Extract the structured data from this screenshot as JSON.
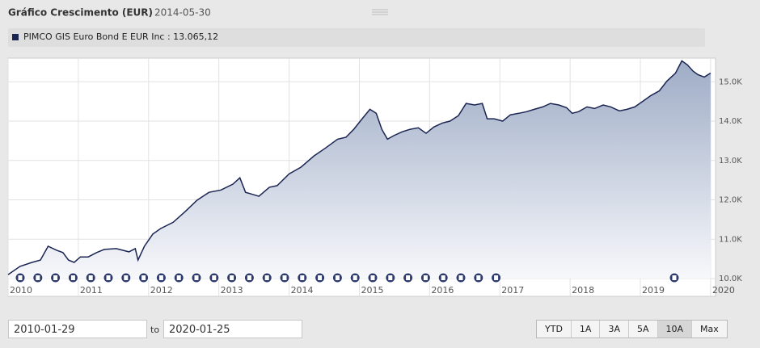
{
  "chart_data": {
    "type": "area",
    "title": "Gráfico Crescimento (EUR)",
    "subtitle": "2014-05-30",
    "series": [
      {
        "name": "PIMCO GIS Euro Bond E EUR Inc",
        "hover_label": ": 13.065,12",
        "color": "#1b2552",
        "x": [
          2010.0,
          2010.17,
          2010.34,
          2010.46,
          2010.57,
          2010.69,
          2010.78,
          2010.86,
          2010.94,
          2011.03,
          2011.14,
          2011.26,
          2011.37,
          2011.54,
          2011.72,
          2011.81,
          2011.85,
          2011.94,
          2012.06,
          2012.17,
          2012.35,
          2012.52,
          2012.69,
          2012.86,
          2013.03,
          2013.2,
          2013.3,
          2013.38,
          2013.46,
          2013.57,
          2013.72,
          2013.83,
          2014.0,
          2014.17,
          2014.35,
          2014.52,
          2014.69,
          2014.81,
          2014.92,
          2015.03,
          2015.15,
          2015.24,
          2015.32,
          2015.4,
          2015.49,
          2015.61,
          2015.72,
          2015.84,
          2015.95,
          2016.06,
          2016.18,
          2016.29,
          2016.41,
          2016.52,
          2016.64,
          2016.75,
          2016.82,
          2016.92,
          2017.04,
          2017.15,
          2017.27,
          2017.38,
          2017.49,
          2017.61,
          2017.72,
          2017.84,
          2017.95,
          2018.03,
          2018.12,
          2018.24,
          2018.35,
          2018.47,
          2018.58,
          2018.7,
          2018.81,
          2018.92,
          2019.04,
          2019.15,
          2019.27,
          2019.38,
          2019.5,
          2019.59,
          2019.67,
          2019.75,
          2019.82,
          2019.91,
          2020.0
        ],
        "values": [
          10100,
          10310,
          10410,
          10470,
          10820,
          10720,
          10660,
          10470,
          10410,
          10550,
          10550,
          10660,
          10740,
          10760,
          10680,
          10760,
          10470,
          10820,
          11130,
          11270,
          11430,
          11700,
          11990,
          12190,
          12250,
          12400,
          12560,
          12190,
          12150,
          12090,
          12320,
          12360,
          12660,
          12830,
          13110,
          13320,
          13540,
          13590,
          13790,
          14040,
          14300,
          14200,
          13790,
          13540,
          13630,
          13730,
          13790,
          13830,
          13690,
          13850,
          13950,
          14000,
          14140,
          14450,
          14410,
          14450,
          14060,
          14060,
          14000,
          14160,
          14200,
          14240,
          14300,
          14360,
          14450,
          14410,
          14340,
          14200,
          14240,
          14360,
          14320,
          14410,
          14360,
          14260,
          14300,
          14360,
          14510,
          14650,
          14770,
          15020,
          15220,
          15530,
          15430,
          15270,
          15180,
          15120,
          15220
        ]
      }
    ],
    "xlim": [
      2010,
      2020.07
    ],
    "xticks": [
      2010,
      2011,
      2012,
      2013,
      2014,
      2015,
      2016,
      2017,
      2018,
      2019,
      2020
    ],
    "ylim": [
      10000,
      15600
    ],
    "yticks": [
      {
        "value": 10000,
        "label": "10.0K"
      },
      {
        "value": 11000,
        "label": "11.0K"
      },
      {
        "value": 12000,
        "label": "12.0K"
      },
      {
        "value": 13000,
        "label": "13.0K"
      },
      {
        "value": 14000,
        "label": "14.0K"
      },
      {
        "value": 15000,
        "label": "15.0K"
      }
    ],
    "grid": true
  },
  "controls": {
    "from_date": "2010-01-29",
    "to_label": "to",
    "to_date": "2020-01-25",
    "range_buttons": [
      "YTD",
      "1A",
      "3A",
      "5A",
      "10A",
      "Max"
    ],
    "active_range": 4
  }
}
